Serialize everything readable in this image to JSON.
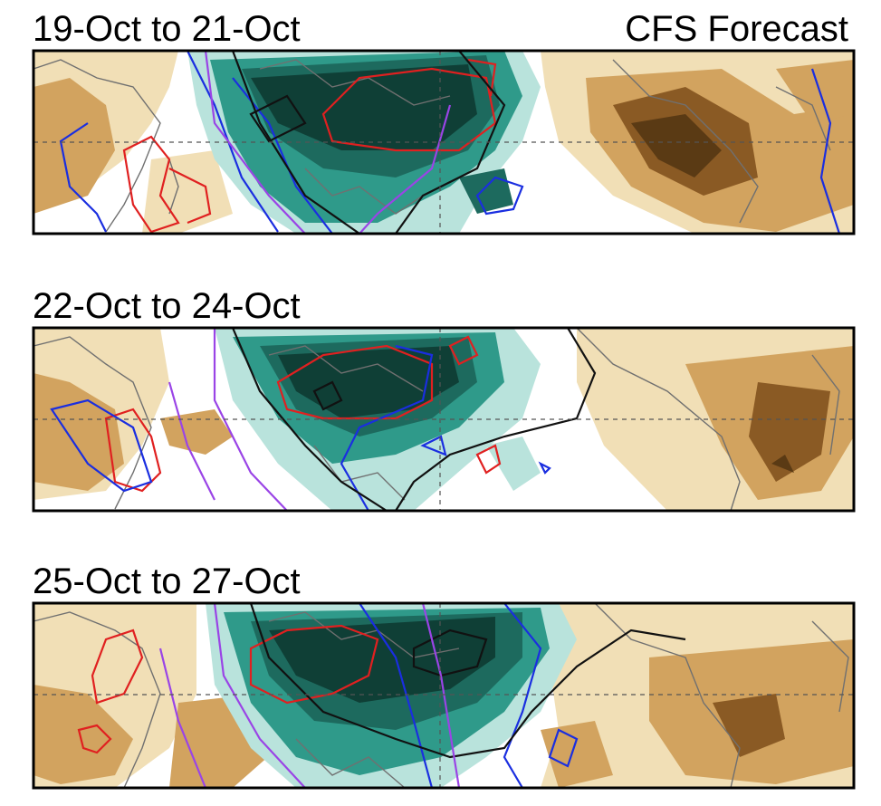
{
  "figure": {
    "subtitle": "CFS Forecast",
    "colors": {
      "wet_dark": "#0f3f36",
      "wet_mid": "#2f9a8a",
      "wet_light": "#b9e3dc",
      "dry_light": "#f1dfb6",
      "dry_mid": "#d2a35f",
      "dry_dark": "#8a5a24",
      "contour_red": "#e02020",
      "contour_blue": "#1a2ee0",
      "contour_black": "#111111",
      "contour_purple": "#9a44e6",
      "coast": "#707070"
    }
  },
  "panels": [
    {
      "title": "19-Oct to 21-Oct"
    },
    {
      "title": "22-Oct to 24-Oct"
    },
    {
      "title": "25-Oct to 27-Oct"
    }
  ]
}
